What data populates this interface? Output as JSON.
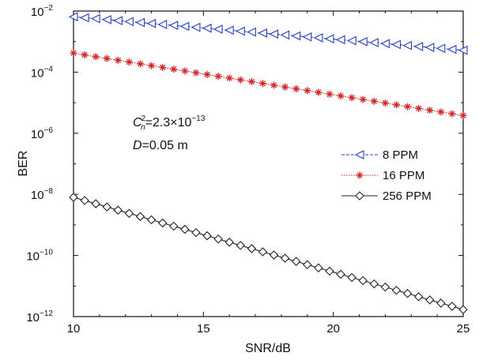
{
  "chart_data": {
    "type": "line",
    "xlabel": "SNR/dB",
    "ylabel": "BER",
    "xlim": [
      10,
      25
    ],
    "ylim_log10": [
      -12,
      -2
    ],
    "y_scale": "log",
    "x_ticks": [
      10,
      15,
      20,
      25
    ],
    "y_ticks": [
      {
        "base": "10",
        "exp": "−12"
      },
      {
        "base": "10",
        "exp": "−10"
      },
      {
        "base": "10",
        "exp": "−8"
      },
      {
        "base": "10",
        "exp": "−6"
      },
      {
        "base": "10",
        "exp": "−4"
      },
      {
        "base": "10",
        "exp": "−2"
      }
    ],
    "annotations": {
      "cn2_symbol": "C",
      "cn2_sup": "2",
      "cn2_sub": "n",
      "cn2_value": "=2.3×10",
      "cn2_exp": "−13",
      "d_symbol": "D",
      "d_value": "=0.05 m"
    },
    "legend_position": "right-middle",
    "series": [
      {
        "name": "8 PPM",
        "color": "#1f3fd6",
        "line": "dashed",
        "marker": "triangle-left",
        "x_start": 10,
        "x_end": 25,
        "y_start": 0.0065,
        "y_end": 0.00052,
        "points": 36
      },
      {
        "name": "16 PPM",
        "color": "#e02020",
        "line": "dotted",
        "marker": "asterisk",
        "x_start": 10,
        "x_end": 25,
        "y_start": 0.00042,
        "y_end": 3.8e-06,
        "points": 36
      },
      {
        "name": "256 PPM",
        "color": "#222222",
        "line": "solid",
        "marker": "diamond",
        "x_start": 10,
        "x_end": 25,
        "y_start": 8e-09,
        "y_end": 1.7e-12,
        "points": 36
      }
    ]
  }
}
